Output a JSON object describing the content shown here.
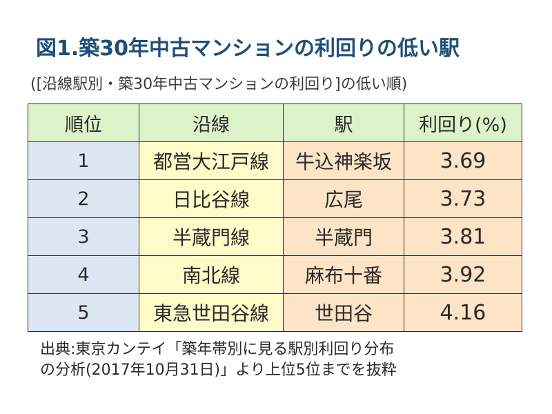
{
  "title": "図1.築30年中古マンションの利回りの低い駅",
  "subtitle": "([沿線駅別・築30年中古マンションの利回り]の低い順)",
  "chart_data": {
    "type": "table",
    "columns": [
      "順位",
      "沿線",
      "駅",
      "利回り(%)"
    ],
    "rows": [
      {
        "rank": "1",
        "line": "都営大江戸線",
        "station": "牛込神楽坂",
        "yield": "3.69"
      },
      {
        "rank": "2",
        "line": "日比谷線",
        "station": "広尾",
        "yield": "3.73"
      },
      {
        "rank": "3",
        "line": "半蔵門線",
        "station": "半蔵門",
        "yield": "3.81"
      },
      {
        "rank": "4",
        "line": "南北線",
        "station": "麻布十番",
        "yield": "3.92"
      },
      {
        "rank": "5",
        "line": "東急世田谷線",
        "station": "世田谷",
        "yield": "4.16"
      }
    ]
  },
  "source": {
    "line1": "出典:東京カンテイ「築年帯別に見る駅別利回り分布",
    "line2": "の分析(2017年10月31日)」より上位5位までを抜粋"
  },
  "colors": {
    "title": "#1f4e79",
    "header_bg": "#dcf3c9",
    "rank_bg": "#dde7f3",
    "line_bg": "#fffbc8",
    "station_bg": "#fde4c6"
  }
}
